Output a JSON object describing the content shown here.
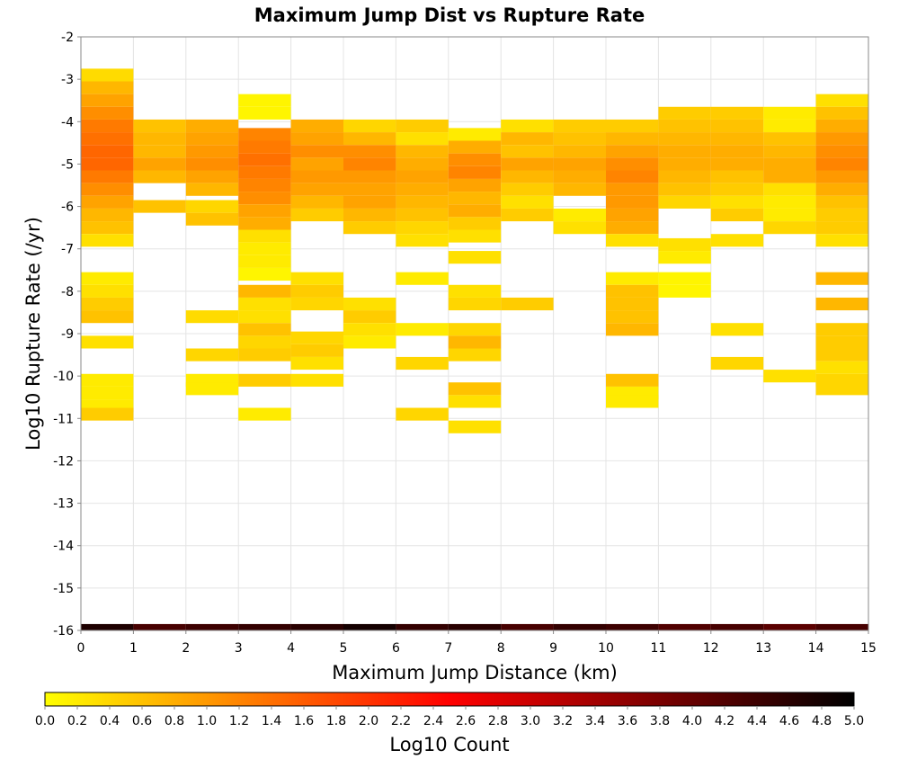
{
  "chart_data": {
    "type": "heatmap",
    "title": "Maximum Jump Dist vs Rupture Rate",
    "xlabel": "Maximum Jump Distance (km)",
    "ylabel": "Log10 Rupture Rate (/yr)",
    "colorbar_label": "Log10 Count",
    "xlim": [
      0,
      15
    ],
    "ylim": [
      -16,
      -2
    ],
    "x_ticks": [
      0,
      1,
      2,
      3,
      4,
      5,
      6,
      7,
      8,
      9,
      10,
      11,
      12,
      13,
      14,
      15
    ],
    "y_ticks": [
      -2,
      -3,
      -4,
      -5,
      -6,
      -7,
      -8,
      -9,
      -10,
      -11,
      -12,
      -13,
      -14,
      -15,
      -16
    ],
    "colorbar_range": [
      0,
      5
    ],
    "colorbar_ticks": [
      0.0,
      0.2,
      0.4,
      0.6,
      0.8,
      1.0,
      1.2,
      1.4,
      1.6,
      1.8,
      2.0,
      2.2,
      2.4,
      2.6,
      2.8,
      3.0,
      3.2,
      3.4,
      3.6,
      3.8,
      4.0,
      4.2,
      4.4,
      4.6,
      4.8,
      5.0
    ],
    "colorscale": [
      "#ffff00",
      "#ff7f00",
      "#ff0000",
      "#7f0000",
      "#000000"
    ],
    "grid": true,
    "bin_width_x": 1,
    "bin_height_y": 0.3,
    "columns": [
      {
        "x": 0,
        "cells": [
          [
            -2.9,
            0.35
          ],
          [
            -3.2,
            0.7
          ],
          [
            -3.5,
            0.9
          ],
          [
            -3.8,
            1.1
          ],
          [
            -4.1,
            1.3
          ],
          [
            -4.4,
            1.4
          ],
          [
            -4.7,
            1.5
          ],
          [
            -5.0,
            1.5
          ],
          [
            -5.3,
            1.3
          ],
          [
            -5.6,
            1.1
          ],
          [
            -5.9,
            0.9
          ],
          [
            -6.2,
            0.7
          ],
          [
            -6.5,
            0.6
          ],
          [
            -6.8,
            0.3
          ],
          [
            -7.7,
            0.2
          ],
          [
            -8.0,
            0.3
          ],
          [
            -8.3,
            0.5
          ],
          [
            -8.6,
            0.6
          ],
          [
            -9.2,
            0.3
          ],
          [
            -10.1,
            0.2
          ],
          [
            -10.4,
            0.2
          ],
          [
            -10.7,
            0.2
          ],
          [
            -10.9,
            0.5
          ],
          [
            -16.0,
            4.7
          ]
        ]
      },
      {
        "x": 1,
        "cells": [
          [
            -4.1,
            0.6
          ],
          [
            -4.4,
            0.7
          ],
          [
            -4.7,
            0.7
          ],
          [
            -5.0,
            0.9
          ],
          [
            -5.3,
            0.7
          ],
          [
            -6.0,
            0.6
          ],
          [
            -16.0,
            4.3
          ]
        ]
      },
      {
        "x": 2,
        "cells": [
          [
            -4.1,
            0.8
          ],
          [
            -4.4,
            0.9
          ],
          [
            -4.7,
            1.0
          ],
          [
            -5.0,
            1.1
          ],
          [
            -5.3,
            0.9
          ],
          [
            -5.6,
            0.7
          ],
          [
            -6.0,
            0.4
          ],
          [
            -6.3,
            0.6
          ],
          [
            -8.6,
            0.35
          ],
          [
            -9.5,
            0.4
          ],
          [
            -10.1,
            0.2
          ],
          [
            -10.3,
            0.2
          ],
          [
            -16.0,
            4.4
          ]
        ]
      },
      {
        "x": 3,
        "cells": [
          [
            -3.5,
            0.1
          ],
          [
            -3.8,
            0.1
          ],
          [
            -4.3,
            1.2
          ],
          [
            -4.6,
            1.3
          ],
          [
            -4.9,
            1.4
          ],
          [
            -5.2,
            1.3
          ],
          [
            -5.5,
            1.2
          ],
          [
            -5.8,
            1.1
          ],
          [
            -6.1,
            0.9
          ],
          [
            -6.4,
            0.8
          ],
          [
            -6.7,
            0.3
          ],
          [
            -7.0,
            0.2
          ],
          [
            -7.3,
            0.2
          ],
          [
            -7.6,
            0.1
          ],
          [
            -8.0,
            0.7
          ],
          [
            -8.3,
            0.3
          ],
          [
            -8.6,
            0.3
          ],
          [
            -8.9,
            0.6
          ],
          [
            -9.2,
            0.4
          ],
          [
            -9.5,
            0.5
          ],
          [
            -10.1,
            0.5
          ],
          [
            -10.9,
            0.2
          ],
          [
            -16.0,
            4.5
          ]
        ]
      },
      {
        "x": 4,
        "cells": [
          [
            -4.1,
            0.8
          ],
          [
            -4.4,
            0.9
          ],
          [
            -4.7,
            1.1
          ],
          [
            -5.0,
            0.9
          ],
          [
            -5.3,
            1.0
          ],
          [
            -5.6,
            0.9
          ],
          [
            -5.9,
            0.7
          ],
          [
            -6.2,
            0.5
          ],
          [
            -7.7,
            0.3
          ],
          [
            -8.0,
            0.5
          ],
          [
            -8.3,
            0.4
          ],
          [
            -9.1,
            0.4
          ],
          [
            -9.4,
            0.5
          ],
          [
            -9.7,
            0.3
          ],
          [
            -10.1,
            0.3
          ],
          [
            -16.0,
            4.6
          ]
        ]
      },
      {
        "x": 5,
        "cells": [
          [
            -4.1,
            0.4
          ],
          [
            -4.4,
            0.7
          ],
          [
            -4.7,
            1.1
          ],
          [
            -5.0,
            1.2
          ],
          [
            -5.3,
            1.0
          ],
          [
            -5.6,
            0.9
          ],
          [
            -5.9,
            0.9
          ],
          [
            -6.2,
            0.7
          ],
          [
            -6.5,
            0.5
          ],
          [
            -8.3,
            0.3
          ],
          [
            -8.6,
            0.5
          ],
          [
            -8.9,
            0.3
          ],
          [
            -9.2,
            0.2
          ],
          [
            -16.0,
            4.8
          ]
        ]
      },
      {
        "x": 6,
        "cells": [
          [
            -4.1,
            0.5
          ],
          [
            -4.4,
            0.3
          ],
          [
            -4.7,
            0.7
          ],
          [
            -5.0,
            0.8
          ],
          [
            -5.3,
            0.9
          ],
          [
            -5.6,
            0.8
          ],
          [
            -5.9,
            0.7
          ],
          [
            -6.2,
            0.6
          ],
          [
            -6.5,
            0.4
          ],
          [
            -6.8,
            0.3
          ],
          [
            -7.7,
            0.2
          ],
          [
            -8.9,
            0.2
          ],
          [
            -9.7,
            0.4
          ],
          [
            -10.9,
            0.4
          ],
          [
            -16.0,
            4.5
          ]
        ]
      },
      {
        "x": 7,
        "cells": [
          [
            -4.3,
            0.2
          ],
          [
            -4.6,
            0.8
          ],
          [
            -4.9,
            1.1
          ],
          [
            -5.2,
            1.2
          ],
          [
            -5.5,
            0.9
          ],
          [
            -5.8,
            0.7
          ],
          [
            -6.1,
            0.8
          ],
          [
            -6.4,
            0.5
          ],
          [
            -6.7,
            0.3
          ],
          [
            -7.2,
            0.3
          ],
          [
            -8.0,
            0.3
          ],
          [
            -8.3,
            0.4
          ],
          [
            -8.9,
            0.4
          ],
          [
            -9.2,
            0.7
          ],
          [
            -9.5,
            0.4
          ],
          [
            -10.3,
            0.6
          ],
          [
            -10.6,
            0.3
          ],
          [
            -11.2,
            0.3
          ],
          [
            -16.0,
            4.6
          ]
        ]
      },
      {
        "x": 8,
        "cells": [
          [
            -4.1,
            0.3
          ],
          [
            -4.4,
            0.7
          ],
          [
            -4.7,
            0.6
          ],
          [
            -5.0,
            0.9
          ],
          [
            -5.3,
            0.7
          ],
          [
            -5.6,
            0.5
          ],
          [
            -5.9,
            0.3
          ],
          [
            -6.2,
            0.5
          ],
          [
            -8.3,
            0.5
          ],
          [
            -16.0,
            4.3
          ]
        ]
      },
      {
        "x": 9,
        "cells": [
          [
            -4.1,
            0.5
          ],
          [
            -4.4,
            0.6
          ],
          [
            -4.7,
            0.7
          ],
          [
            -5.0,
            0.9
          ],
          [
            -5.3,
            0.8
          ],
          [
            -5.6,
            0.7
          ],
          [
            -6.2,
            0.2
          ],
          [
            -6.5,
            0.3
          ],
          [
            -16.0,
            4.5
          ]
        ]
      },
      {
        "x": 10,
        "cells": [
          [
            -4.1,
            0.5
          ],
          [
            -4.4,
            0.7
          ],
          [
            -4.7,
            0.9
          ],
          [
            -5.0,
            1.1
          ],
          [
            -5.3,
            1.2
          ],
          [
            -5.6,
            1.0
          ],
          [
            -5.9,
            1.0
          ],
          [
            -6.2,
            0.9
          ],
          [
            -6.5,
            0.8
          ],
          [
            -6.8,
            0.3
          ],
          [
            -7.7,
            0.2
          ],
          [
            -8.0,
            0.6
          ],
          [
            -8.3,
            0.6
          ],
          [
            -8.6,
            0.6
          ],
          [
            -8.9,
            0.7
          ],
          [
            -10.1,
            0.6
          ],
          [
            -10.4,
            0.2
          ],
          [
            -10.6,
            0.2
          ],
          [
            -16.0,
            4.4
          ]
        ]
      },
      {
        "x": 11,
        "cells": [
          [
            -3.8,
            0.5
          ],
          [
            -4.1,
            0.6
          ],
          [
            -4.4,
            0.7
          ],
          [
            -4.7,
            0.8
          ],
          [
            -5.0,
            0.8
          ],
          [
            -5.3,
            0.7
          ],
          [
            -5.6,
            0.6
          ],
          [
            -5.9,
            0.4
          ],
          [
            -6.9,
            0.3
          ],
          [
            -7.2,
            0.2
          ],
          [
            -7.7,
            0.1
          ],
          [
            -8.0,
            0.1
          ],
          [
            -16.0,
            4.2
          ]
        ]
      },
      {
        "x": 12,
        "cells": [
          [
            -3.8,
            0.5
          ],
          [
            -4.1,
            0.6
          ],
          [
            -4.4,
            0.7
          ],
          [
            -4.7,
            0.8
          ],
          [
            -5.0,
            0.8
          ],
          [
            -5.3,
            0.6
          ],
          [
            -5.6,
            0.5
          ],
          [
            -5.9,
            0.3
          ],
          [
            -6.2,
            0.5
          ],
          [
            -6.8,
            0.3
          ],
          [
            -8.9,
            0.3
          ],
          [
            -9.7,
            0.4
          ],
          [
            -16.0,
            4.3
          ]
        ]
      },
      {
        "x": 13,
        "cells": [
          [
            -3.8,
            0.2
          ],
          [
            -4.1,
            0.2
          ],
          [
            -4.4,
            0.6
          ],
          [
            -4.7,
            0.7
          ],
          [
            -5.0,
            0.8
          ],
          [
            -5.3,
            0.8
          ],
          [
            -5.6,
            0.3
          ],
          [
            -5.9,
            0.2
          ],
          [
            -6.2,
            0.2
          ],
          [
            -6.5,
            0.4
          ],
          [
            -10.0,
            0.3
          ],
          [
            -16.0,
            4.1
          ]
        ]
      },
      {
        "x": 14,
        "cells": [
          [
            -3.5,
            0.3
          ],
          [
            -3.8,
            0.6
          ],
          [
            -4.1,
            0.8
          ],
          [
            -4.4,
            1.0
          ],
          [
            -4.7,
            1.1
          ],
          [
            -5.0,
            1.2
          ],
          [
            -5.3,
            1.0
          ],
          [
            -5.6,
            0.8
          ],
          [
            -5.9,
            0.6
          ],
          [
            -6.2,
            0.5
          ],
          [
            -6.5,
            0.5
          ],
          [
            -6.8,
            0.3
          ],
          [
            -7.7,
            0.7
          ],
          [
            -8.3,
            0.7
          ],
          [
            -8.9,
            0.5
          ],
          [
            -9.2,
            0.5
          ],
          [
            -9.5,
            0.5
          ],
          [
            -9.8,
            0.3
          ],
          [
            -10.1,
            0.4
          ],
          [
            -10.3,
            0.4
          ],
          [
            -16.0,
            4.3
          ]
        ]
      }
    ]
  }
}
